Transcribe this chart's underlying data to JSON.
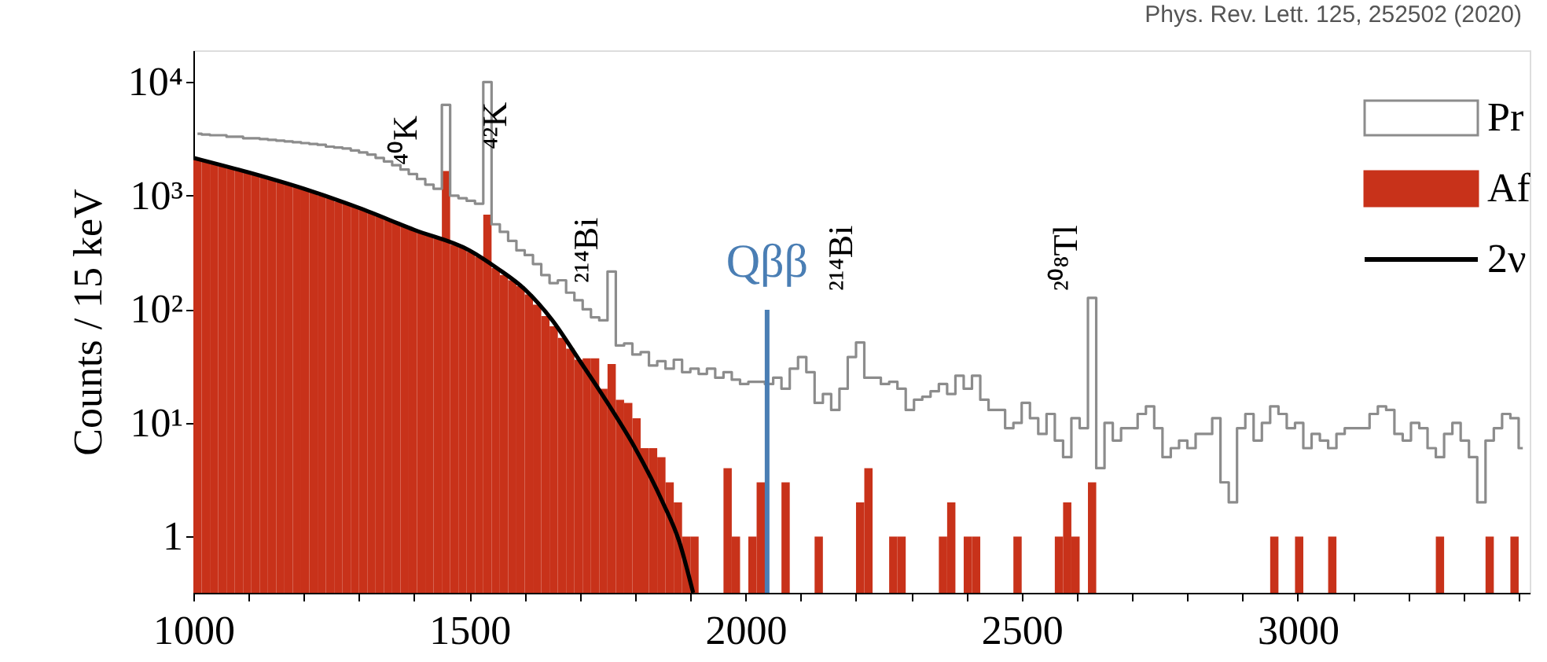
{
  "chart_data": {
    "type": "histogram",
    "ylabel": "Counts / 15 keV",
    "bins": [
      1000,
      1015,
      1030,
      1045,
      1060,
      1075,
      1090,
      1105,
      1120,
      1135,
      1150,
      1165,
      1180,
      1195,
      1210,
      1225,
      1240,
      1255,
      1270,
      1285,
      1300,
      1315,
      1330,
      1345,
      1360,
      1375,
      1390,
      1405,
      1420,
      1435,
      1450,
      1465,
      1480,
      1495,
      1510,
      1525,
      1540,
      1555,
      1570,
      1585,
      1600,
      1615,
      1630,
      1645,
      1660,
      1675,
      1690,
      1705,
      1720,
      1735,
      1750,
      1765,
      1780,
      1795,
      1810,
      1825,
      1840,
      1855,
      1870,
      1885,
      1900,
      1915,
      1930,
      1945,
      1960,
      1975,
      1990,
      2005,
      2020,
      2035,
      2050,
      2065,
      2080,
      2095,
      2110,
      2125,
      2140,
      2155,
      2170,
      2185,
      2200,
      2215,
      2230,
      2245,
      2260,
      2275,
      2290,
      2305,
      2320,
      2335,
      2350,
      2365,
      2380,
      2395,
      2410,
      2425,
      2440,
      2455,
      2470,
      2485,
      2500,
      2515,
      2530,
      2545,
      2560,
      2575,
      2590,
      2605,
      2620,
      2635,
      2650,
      2665,
      2680,
      2695,
      2710,
      2725,
      2740,
      2755,
      2770,
      2785,
      2800,
      2815,
      2830,
      2845,
      2860,
      2875,
      2890,
      2905,
      2920,
      2935,
      2950,
      2965,
      2980,
      2995,
      3010,
      3025,
      3040,
      3055,
      3070,
      3085,
      3100,
      3115,
      3130,
      3145,
      3160,
      3175,
      3190,
      3205,
      3220,
      3235,
      3250,
      3265,
      3280,
      3295,
      3310,
      3325,
      3340,
      3355,
      3370,
      3385,
      3400,
      3415
    ],
    "series": [
      {
        "name": "Pr",
        "type": "step",
        "color": "#8c8c8c",
        "x": [
          1007.5,
          1022.5,
          1037.5,
          1052.5,
          1067.5,
          1082.5,
          1097.5,
          1112.5,
          1127.5,
          1142.5,
          1157.5,
          1172.5,
          1187.5,
          1202.5,
          1217.5,
          1232.5,
          1247.5,
          1262.5,
          1277.5,
          1292.5,
          1307.5,
          1322.5,
          1337.5,
          1352.5,
          1367.5,
          1382.5,
          1397.5,
          1412.5,
          1427.5,
          1442.5,
          1457.5,
          1472.5,
          1487.5,
          1502.5,
          1517.5,
          1532.5,
          1547.5,
          1562.5,
          1577.5,
          1592.5,
          1607.5,
          1622.5,
          1637.5,
          1652.5,
          1667.5,
          1682.5,
          1697.5,
          1712.5,
          1727.5,
          1742.5,
          1757.5,
          1772.5,
          1787.5,
          1802.5,
          1817.5,
          1832.5,
          1847.5,
          1862.5,
          1877.5,
          1892.5,
          1907.5,
          1922.5,
          1937.5,
          1952.5,
          1967.5,
          1982.5,
          1997.5,
          2012.5,
          2027.5,
          2042.5,
          2057.5,
          2072.5,
          2087.5,
          2102.5,
          2117.5,
          2132.5,
          2147.5,
          2162.5,
          2177.5,
          2192.5,
          2207.5,
          2222.5,
          2237.5,
          2252.5,
          2267.5,
          2282.5,
          2297.5,
          2312.5,
          2327.5,
          2342.5,
          2357.5,
          2372.5,
          2387.5,
          2402.5,
          2417.5,
          2432.5,
          2447.5,
          2462.5,
          2477.5,
          2492.5,
          2507.5,
          2522.5,
          2537.5,
          2552.5,
          2567.5,
          2582.5,
          2597.5,
          2612.5,
          2627.5,
          2642.5,
          2657.5,
          2672.5,
          2687.5,
          2702.5,
          2717.5,
          2732.5,
          2747.5,
          2762.5,
          2777.5,
          2792.5,
          2807.5,
          2822.5,
          2837.5,
          2852.5,
          2867.5,
          2882.5,
          2897.5,
          2912.5,
          2927.5,
          2942.5,
          2957.5,
          2972.5,
          2987.5,
          3002.5,
          3017.5,
          3032.5,
          3047.5,
          3062.5,
          3077.5,
          3092.5,
          3107.5,
          3122.5,
          3137.5,
          3152.5,
          3167.5,
          3182.5,
          3197.5,
          3212.5,
          3227.5,
          3242.5,
          3257.5,
          3272.5,
          3287.5,
          3302.5,
          3317.5,
          3332.5,
          3347.5,
          3362.5,
          3377.5,
          3392.5,
          3407.5
        ],
        "values": [
          3500,
          3450,
          3400,
          3400,
          3300,
          3300,
          3200,
          3200,
          3150,
          3100,
          3050,
          3000,
          2950,
          2900,
          2850,
          2800,
          2700,
          2650,
          2600,
          2500,
          2400,
          2300,
          2150,
          2000,
          1850,
          1700,
          1550,
          1400,
          1250,
          1150,
          6300,
          1000,
          950,
          900,
          850,
          10000,
          560,
          480,
          400,
          330,
          300,
          250,
          200,
          170,
          180,
          140,
          120,
          100,
          85,
          80,
          215,
          48,
          50,
          40,
          42,
          32,
          35,
          30,
          36,
          28,
          30,
          27,
          30,
          25,
          28,
          24,
          22,
          23,
          23,
          22,
          25,
          20,
          30,
          38,
          28,
          15,
          18,
          13,
          20,
          38,
          51,
          25,
          25,
          22,
          23,
          20,
          13,
          16,
          17,
          19,
          22,
          18,
          26,
          20,
          26,
          16,
          13,
          13,
          9,
          10,
          15,
          11,
          8,
          12,
          7,
          5,
          11,
          9,
          126,
          4,
          10,
          7,
          9,
          9,
          12,
          14,
          9,
          5,
          6,
          7,
          6,
          8,
          8,
          11,
          3,
          2,
          9,
          12,
          7,
          10,
          14,
          12,
          9,
          10,
          6,
          8,
          7,
          6,
          8,
          9,
          9,
          9,
          12,
          14,
          13,
          8,
          7,
          10,
          9,
          6,
          5,
          8,
          10,
          7,
          5,
          2,
          7,
          9,
          12,
          11,
          6
        ]
      },
      {
        "name": "Af",
        "type": "histogram",
        "color": "#c8321a",
        "values": [
          2100,
          2000,
          1900,
          1820,
          1740,
          1660,
          1600,
          1520,
          1450,
          1380,
          1320,
          1260,
          1200,
          1140,
          1070,
          1000,
          950,
          890,
          850,
          800,
          760,
          710,
          660,
          620,
          580,
          540,
          510,
          480,
          450,
          420,
          1650,
          370,
          350,
          320,
          290,
          680,
          230,
          200,
          180,
          160,
          135,
          110,
          87,
          71,
          56,
          45,
          36,
          37,
          37,
          20,
          33,
          16,
          15,
          11,
          6,
          6,
          5,
          3,
          2,
          1,
          1,
          null,
          null,
          null,
          4,
          1,
          null,
          1,
          3,
          null,
          null,
          3,
          null,
          null,
          null,
          1,
          null,
          null,
          null,
          null,
          2,
          4,
          null,
          null,
          1,
          1,
          null,
          null,
          null,
          null,
          1,
          2,
          null,
          1,
          1,
          null,
          null,
          null,
          null,
          1,
          null,
          null,
          null,
          null,
          1,
          2,
          1,
          null,
          3,
          null,
          null,
          null,
          null,
          null,
          null,
          null,
          null,
          null,
          null,
          null,
          null,
          null,
          null,
          null,
          null,
          null,
          null,
          null,
          null,
          null,
          1,
          null,
          null,
          1,
          null,
          null,
          null,
          1,
          null,
          null,
          null,
          null,
          null,
          null,
          null,
          null,
          null,
          null,
          null,
          null,
          1,
          null,
          null,
          null,
          null,
          null,
          1,
          null,
          null,
          1,
          null
        ]
      },
      {
        "name": "2ν",
        "type": "line",
        "color": "#000000",
        "x": [
          1000,
          1100,
          1200,
          1300,
          1400,
          1500,
          1550,
          1600,
          1650,
          1700,
          1750,
          1800,
          1850,
          1880,
          1905
        ],
        "values": [
          2150,
          1600,
          1150,
          780,
          500,
          330,
          230,
          150,
          80,
          35,
          15,
          6,
          2,
          0.9,
          0.32
        ]
      }
    ],
    "xlim": [
      1000,
      3420
    ],
    "xticks": [
      1000,
      {
        "value": 1100,
        "label": null
      },
      {
        "value": 1200,
        "label": null
      },
      {
        "value": 1300,
        "label": null
      },
      {
        "value": 1400,
        "label": null
      },
      1500,
      {
        "value": 1600,
        "label": null
      },
      {
        "value": 1700,
        "label": null
      },
      {
        "value": 1800,
        "label": null
      },
      {
        "value": 1900,
        "label": null
      },
      2000,
      {
        "value": 2100,
        "label": null
      },
      {
        "value": 2200,
        "label": null
      },
      {
        "value": 2300,
        "label": null
      },
      {
        "value": 2400,
        "label": null
      },
      2500,
      {
        "value": 2600,
        "label": null
      },
      {
        "value": 2700,
        "label": null
      },
      {
        "value": 2800,
        "label": null
      },
      {
        "value": 2900,
        "label": null
      },
      3000,
      {
        "value": 3100,
        "label": null
      },
      {
        "value": 3200,
        "label": null
      },
      {
        "value": 3300,
        "label": null
      },
      {
        "value": 3400,
        "label": null
      }
    ],
    "ylim": [
      0.32,
      19000
    ],
    "yticks": [
      {
        "value": 1,
        "label": "1"
      },
      {
        "value": 10,
        "label": "10¹"
      },
      {
        "value": 100,
        "label": "10²"
      },
      {
        "value": 1000,
        "label": "10³"
      },
      {
        "value": 10000,
        "label": "10⁴"
      }
    ],
    "log": true,
    "grid": false,
    "legend": "top right",
    "ref_lines": [
      {
        "axis": "x",
        "value": 2039,
        "label": "Qββ",
        "color": "#4a7eb4"
      }
    ],
    "annotations": [
      "⁴⁰K",
      "⁴²K",
      "²¹⁴Bi",
      "²¹⁴Bi",
      "²⁰⁸Tl",
      "Phys. Rev. Lett. 125, 252502 (2020)"
    ]
  }
}
